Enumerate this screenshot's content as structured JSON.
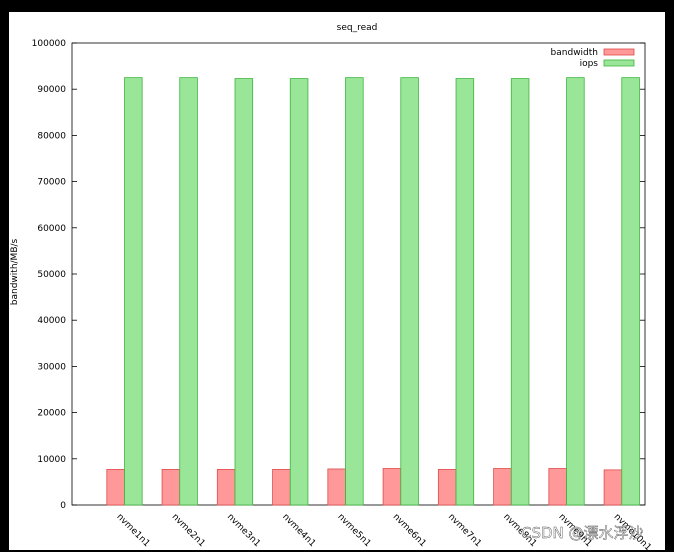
{
  "chart_data": {
    "type": "bar",
    "title": "seq_read",
    "xlabel": "",
    "ylabel": "bandwith/MB/s",
    "ylim": [
      0,
      100000
    ],
    "yticks": [
      0,
      10000,
      20000,
      30000,
      40000,
      50000,
      60000,
      70000,
      80000,
      90000,
      100000
    ],
    "categories": [
      "nvme1n1",
      "nvme2n1",
      "nvme3n1",
      "nvme4n1",
      "nvme5n1",
      "nvme6n1",
      "nvme7n1",
      "nvme8n1",
      "nvme9n1",
      "nvme10n1"
    ],
    "series": [
      {
        "name": "bandwidth",
        "color": "#ff9999",
        "stroke": "#e04a4a",
        "values": [
          7700,
          7700,
          7700,
          7700,
          7800,
          7900,
          7700,
          7900,
          7900,
          7600
        ]
      },
      {
        "name": "iops",
        "color": "#99e699",
        "stroke": "#3cb43c",
        "values": [
          92500,
          92500,
          92300,
          92300,
          92500,
          92500,
          92300,
          92300,
          92500,
          92500
        ]
      }
    ],
    "legend": "top-right",
    "grid": false
  },
  "watermark": "CSDN @漂水浮沙"
}
